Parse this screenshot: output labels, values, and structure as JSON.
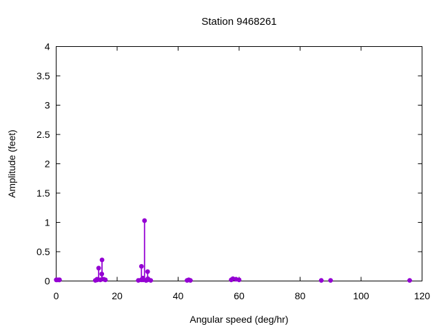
{
  "figure": {
    "background_color": "#ffffff",
    "text_color": "#000000"
  },
  "chart_data": {
    "type": "scatter",
    "style": "impulses+points",
    "title": "Station 9468261",
    "xlabel": "Angular speed (deg/hr)",
    "ylabel": "Amplitude (feet)",
    "xlim": [
      0,
      120
    ],
    "ylim": [
      0,
      4
    ],
    "x_ticks": [
      0,
      20,
      40,
      60,
      80,
      100,
      120
    ],
    "y_ticks": [
      0,
      0.5,
      1,
      1.5,
      2,
      2.5,
      3,
      3.5,
      4
    ],
    "grid": false,
    "legend": "none",
    "point_color": "#9400d3",
    "axis_color": "#000000",
    "points": [
      {
        "x": 0.04,
        "y": 0.02
      },
      {
        "x": 0.08,
        "y": 0.02
      },
      {
        "x": 0.54,
        "y": 0.02
      },
      {
        "x": 1.02,
        "y": 0.02
      },
      {
        "x": 1.1,
        "y": 0.02
      },
      {
        "x": 12.85,
        "y": 0.01
      },
      {
        "x": 13.4,
        "y": 0.03
      },
      {
        "x": 13.47,
        "y": 0.02
      },
      {
        "x": 13.94,
        "y": 0.22
      },
      {
        "x": 14.49,
        "y": 0.02
      },
      {
        "x": 14.96,
        "y": 0.12
      },
      {
        "x": 15.04,
        "y": 0.36
      },
      {
        "x": 15.59,
        "y": 0.03
      },
      {
        "x": 16.14,
        "y": 0.02
      },
      {
        "x": 26.95,
        "y": 0.01
      },
      {
        "x": 27.9,
        "y": 0.02
      },
      {
        "x": 27.97,
        "y": 0.25
      },
      {
        "x": 28.44,
        "y": 0.05
      },
      {
        "x": 28.51,
        "y": 0.02
      },
      {
        "x": 28.98,
        "y": 1.03
      },
      {
        "x": 29.46,
        "y": 0.01
      },
      {
        "x": 29.53,
        "y": 0.01
      },
      {
        "x": 29.96,
        "y": 0.02
      },
      {
        "x": 30.0,
        "y": 0.16
      },
      {
        "x": 30.08,
        "y": 0.04
      },
      {
        "x": 31.02,
        "y": 0.01
      },
      {
        "x": 42.93,
        "y": 0.01
      },
      {
        "x": 43.48,
        "y": 0.02
      },
      {
        "x": 44.03,
        "y": 0.01
      },
      {
        "x": 57.42,
        "y": 0.02
      },
      {
        "x": 57.97,
        "y": 0.04
      },
      {
        "x": 58.98,
        "y": 0.03
      },
      {
        "x": 60.0,
        "y": 0.02
      },
      {
        "x": 86.95,
        "y": 0.01
      },
      {
        "x": 90.0,
        "y": 0.01
      },
      {
        "x": 115.94,
        "y": 0.01
      }
    ]
  }
}
